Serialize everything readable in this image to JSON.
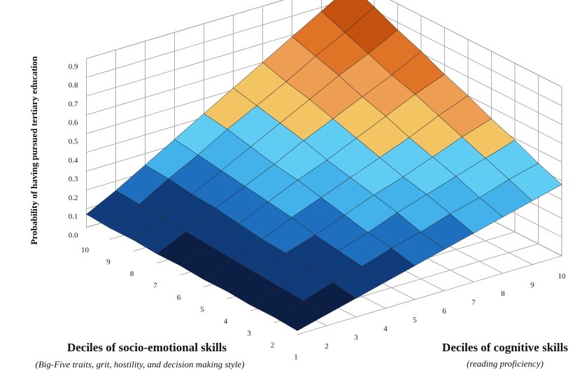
{
  "chart_data": {
    "type": "surface3d",
    "z_axis_label": "Probability of having pursued tertiary education",
    "x_axis_label": "Deciles of socio-emotional skills",
    "x_axis_sublabel": "(Big-Five traits, grit, hostility, and decision making style)",
    "y_axis_label": "Deciles of cognitive skills",
    "y_axis_sublabel": "(reading proficiency)",
    "xticks": [
      1,
      2,
      3,
      4,
      5,
      6,
      7,
      8,
      9,
      10
    ],
    "yticks": [
      2,
      3,
      4,
      5,
      6,
      7,
      8,
      9,
      10
    ],
    "xlim": [
      1,
      10
    ],
    "ylim": [
      1,
      10
    ],
    "zlim": [
      0,
      0.9
    ],
    "zticks": [
      {
        "value": 0,
        "label": "0.0"
      },
      0.1,
      0.2,
      0.3,
      0.4,
      0.5,
      0.6,
      0.7,
      0.8,
      0.9
    ],
    "z": [
      [
        0.02,
        0.06,
        0.1,
        0.14,
        0.18,
        0.22,
        0.26,
        0.3,
        0.34,
        0.38
      ],
      [
        0.03,
        0.07,
        0.12,
        0.16,
        0.21,
        0.25,
        0.3,
        0.34,
        0.39,
        0.43
      ],
      [
        0.03,
        0.08,
        0.13,
        0.18,
        0.23,
        0.29,
        0.34,
        0.39,
        0.44,
        0.49
      ],
      [
        0.04,
        0.09,
        0.15,
        0.2,
        0.26,
        0.32,
        0.37,
        0.43,
        0.49,
        0.54
      ],
      [
        0.04,
        0.1,
        0.16,
        0.23,
        0.29,
        0.35,
        0.41,
        0.47,
        0.54,
        0.6
      ],
      [
        0.05,
        0.11,
        0.18,
        0.25,
        0.32,
        0.38,
        0.45,
        0.52,
        0.59,
        0.65
      ],
      [
        0.05,
        0.12,
        0.2,
        0.27,
        0.34,
        0.42,
        0.49,
        0.56,
        0.63,
        0.71
      ],
      [
        0.06,
        0.13,
        0.21,
        0.29,
        0.37,
        0.45,
        0.53,
        0.61,
        0.68,
        0.76
      ],
      [
        0.06,
        0.14,
        0.23,
        0.31,
        0.4,
        0.48,
        0.56,
        0.65,
        0.73,
        0.82
      ],
      [
        0.07,
        0.15,
        0.24,
        0.33,
        0.42,
        0.51,
        0.6,
        0.69,
        0.78,
        0.87
      ]
    ],
    "band_colors": [
      "#0b1f45",
      "#103c7c",
      "#1f6fbf",
      "#43b2ea",
      "#5fcdf3",
      "#f2c462",
      "#ee9e52",
      "#df7426",
      "#c4520e",
      "#a0140e"
    ],
    "grid": true
  }
}
